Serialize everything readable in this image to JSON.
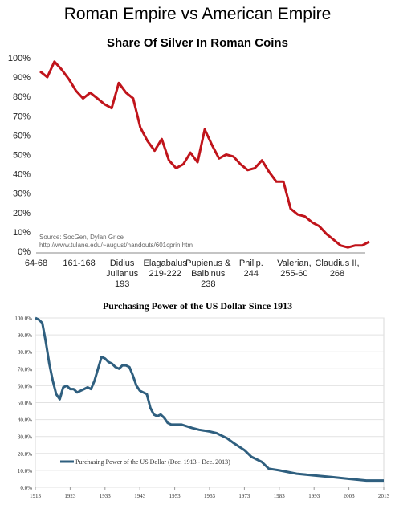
{
  "page": {
    "title": "Roman Empire vs American Empire"
  },
  "chart_data": [
    {
      "type": "line",
      "title": "Share Of Silver In Roman Coins",
      "xlabel": "",
      "ylabel": "",
      "ylim": [
        0,
        100
      ],
      "yticks": [
        "0%",
        "10%",
        "20%",
        "30%",
        "40%",
        "50%",
        "60%",
        "70%",
        "80%",
        "90%",
        "100%"
      ],
      "x_category_labels": [
        [
          "64-68"
        ],
        [
          "161-168"
        ],
        [
          "Didius",
          "Julianus",
          "193"
        ],
        [
          "Elagabalus",
          "219-222"
        ],
        [
          "Pupienus &",
          "Balbinus",
          "238"
        ],
        [
          "Philip.",
          "244"
        ],
        [
          "Valerian,",
          "255-60"
        ],
        [
          "Claudius II,",
          "268"
        ]
      ],
      "source_lines": [
        "Source: SocGen, Dylan Grice",
        "http://www.tulane.edu/~august/handouts/601cprin.htm"
      ],
      "line_color": "#c0141b",
      "grid": false,
      "series": [
        {
          "values": [
            93,
            90,
            98,
            94,
            89,
            83,
            79,
            82,
            79,
            76,
            74,
            87,
            82,
            79,
            64,
            57,
            52,
            58,
            47,
            43,
            45,
            51,
            46,
            63,
            55,
            48,
            50,
            49,
            45,
            42,
            43,
            47,
            41,
            36,
            36,
            22,
            19,
            18,
            15,
            13,
            9,
            6,
            3,
            2,
            3,
            3,
            5
          ]
        }
      ]
    },
    {
      "type": "line",
      "title": "Purchasing Power of the US Dollar Since 1913",
      "xlabel": "",
      "ylabel": "",
      "xlim": [
        1913,
        2013
      ],
      "ylim": [
        0,
        100
      ],
      "xticks": [
        "1913",
        "1923",
        "1933",
        "1943",
        "1953",
        "1963",
        "1973",
        "1983",
        "1993",
        "2003",
        "2013"
      ],
      "yticks": [
        "0.0%",
        "10.0%",
        "20.0%",
        "30.0%",
        "40.0%",
        "50.0%",
        "60.0%",
        "70.0%",
        "80.0%",
        "90.0%",
        "100.0%"
      ],
      "legend": "inside, lower-left",
      "line_color": "#2f5f7f",
      "grid": true,
      "series": [
        {
          "name": "Purchasing Power of the US Dollar (Dec. 1913 - Dec. 2013)",
          "x": [
            1913,
            1914,
            1915,
            1916,
            1917,
            1918,
            1919,
            1920,
            1921,
            1922,
            1923,
            1924,
            1925,
            1926,
            1927,
            1928,
            1929,
            1930,
            1931,
            1932,
            1933,
            1934,
            1935,
            1936,
            1937,
            1938,
            1939,
            1940,
            1941,
            1942,
            1943,
            1944,
            1945,
            1946,
            1947,
            1948,
            1949,
            1950,
            1951,
            1952,
            1953,
            1955,
            1958,
            1960,
            1963,
            1965,
            1968,
            1970,
            1973,
            1975,
            1978,
            1980,
            1983,
            1988,
            1993,
            1998,
            2003,
            2008,
            2013
          ],
          "y": [
            100,
            99,
            97,
            86,
            73,
            63,
            55,
            52,
            59,
            60,
            58,
            58,
            56,
            57,
            58,
            59,
            58,
            63,
            70,
            77,
            76,
            74,
            73,
            71,
            70,
            72,
            72,
            71,
            66,
            60,
            57,
            56,
            55,
            47,
            43,
            42,
            43,
            41,
            38,
            37,
            37,
            37,
            35,
            34,
            33,
            32,
            29,
            26,
            22,
            18,
            15,
            11,
            10,
            8,
            7,
            6,
            5,
            4,
            4
          ]
        }
      ]
    }
  ]
}
